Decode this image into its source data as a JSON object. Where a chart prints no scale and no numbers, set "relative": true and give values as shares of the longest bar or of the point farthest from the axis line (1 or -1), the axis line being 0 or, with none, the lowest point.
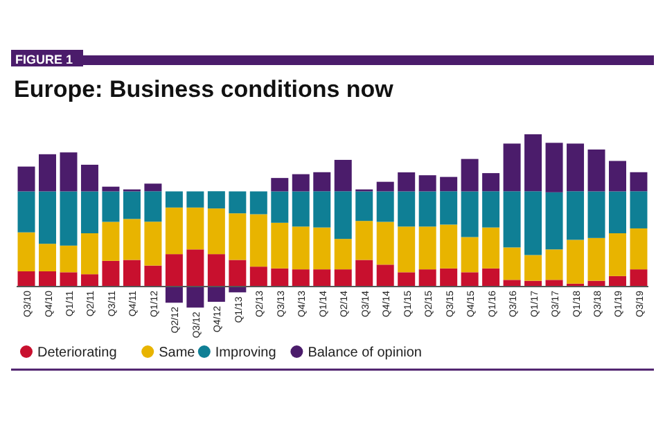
{
  "chart_data": {
    "type": "bar",
    "title": "Europe: Business conditions now",
    "annotations": [
      "FIGURE 1"
    ],
    "relative": true,
    "stacked": true,
    "legend": "bottom left",
    "categories": [
      "Q3/10",
      "Q4/10",
      "Q1/11",
      "Q2/11",
      "Q3/11",
      "Q4/11",
      "Q1/12",
      "Q2/12",
      "Q3/12",
      "Q4/12",
      "Q1/13",
      "Q2/13",
      "Q3/13",
      "Q4/13",
      "Q1/14",
      "Q2/14",
      "Q3/14",
      "Q4/14",
      "Q1/15",
      "Q2/15",
      "Q3/15",
      "Q4/15",
      "Q1/16",
      "Q3/16",
      "Q1/17",
      "Q3/17",
      "Q1/18",
      "Q3/18",
      "Q1/19",
      "Q3/19"
    ],
    "series": [
      {
        "name": "Deteriorating",
        "color": "#c8102e",
        "values": [
          0.1,
          0.1,
          0.094,
          0.081,
          0.169,
          0.175,
          0.138,
          0.213,
          0.244,
          0.213,
          0.175,
          0.131,
          0.119,
          0.113,
          0.113,
          0.113,
          0.175,
          0.144,
          0.094,
          0.113,
          0.119,
          0.094,
          0.119,
          0.044,
          0.038,
          0.044,
          0.019,
          0.038,
          0.069,
          0.113
        ]
      },
      {
        "name": "Same",
        "color": "#e8b400",
        "values": [
          0.256,
          0.181,
          0.175,
          0.269,
          0.256,
          0.269,
          0.288,
          0.306,
          0.275,
          0.3,
          0.306,
          0.344,
          0.3,
          0.281,
          0.275,
          0.2,
          0.256,
          0.281,
          0.3,
          0.281,
          0.288,
          0.231,
          0.269,
          0.213,
          0.169,
          0.2,
          0.288,
          0.281,
          0.281,
          0.269
        ]
      },
      {
        "name": "Improving",
        "color": "#0f7f95",
        "values": [
          0.269,
          0.344,
          0.356,
          0.275,
          0.2,
          0.181,
          0.2,
          0.106,
          0.106,
          0.113,
          0.144,
          0.15,
          0.206,
          0.231,
          0.238,
          0.313,
          0.194,
          0.2,
          0.231,
          0.231,
          0.219,
          0.3,
          0.238,
          0.369,
          0.419,
          0.375,
          0.319,
          0.306,
          0.275,
          0.244
        ]
      },
      {
        "name": "Balance of opinion",
        "color": "#4b1c6b",
        "values": [
          0.163,
          0.244,
          0.256,
          0.175,
          0.031,
          0.013,
          0.05,
          -0.106,
          -0.138,
          -0.1,
          -0.038,
          0,
          0.088,
          0.113,
          0.125,
          0.206,
          0.013,
          0.063,
          0.125,
          0.106,
          0.094,
          0.213,
          0.119,
          0.313,
          0.374,
          0.325,
          0.313,
          0.275,
          0.2,
          0.125
        ]
      }
    ]
  }
}
